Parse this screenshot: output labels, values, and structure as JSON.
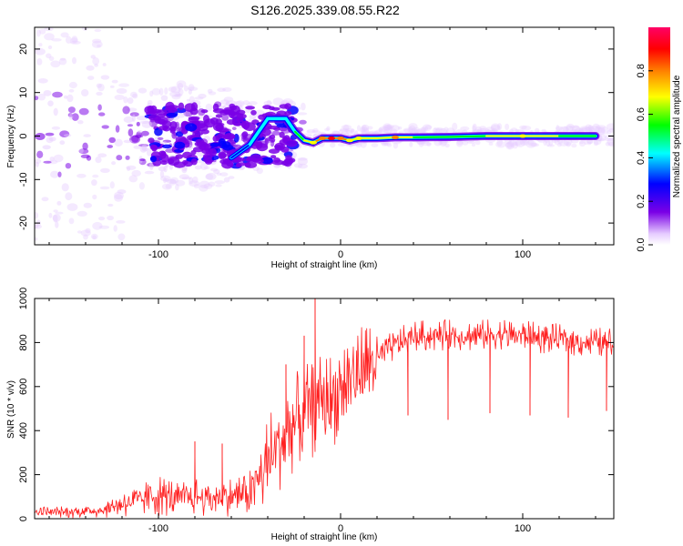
{
  "title": "S126.2025.339.08.55.R22",
  "chart_data": [
    {
      "type": "heatmap",
      "name": "spectrogram",
      "xlabel": "Height of straight line (km)",
      "ylabel": "Frequency (Hz)",
      "xlim": [
        -168,
        150
      ],
      "ylim": [
        -25,
        25
      ],
      "xticks": [
        -100,
        0,
        100
      ],
      "xtick_labels": [
        "-100",
        "0",
        "100"
      ],
      "yticks": [
        -20,
        -10,
        0,
        10,
        20
      ],
      "ytick_labels": [
        "-20",
        "-10",
        "0",
        "10",
        "20"
      ],
      "colorbar": {
        "label": "Normalized spectral amplitude",
        "range": [
          0,
          1
        ],
        "ticks": [
          0.0,
          0.2,
          0.4,
          0.6,
          0.8
        ],
        "tick_labels": [
          "0.0",
          "0.2",
          "0.4",
          "0.6",
          "0.8"
        ],
        "colors": [
          "#ffffff",
          "#e6ccff",
          "#7a00e6",
          "#0000ff",
          "#00ffff",
          "#00ff00",
          "#ffff00",
          "#ff8000",
          "#ff0000",
          "#ff0066"
        ]
      },
      "ridge_points": [
        {
          "x": -60,
          "y": -5,
          "v": 0.35
        },
        {
          "x": -50,
          "y": -2,
          "v": 0.4
        },
        {
          "x": -40,
          "y": 4,
          "v": 0.4
        },
        {
          "x": -30,
          "y": 4,
          "v": 0.4
        },
        {
          "x": -25,
          "y": 1,
          "v": 0.5
        },
        {
          "x": -20,
          "y": -1,
          "v": 0.6
        },
        {
          "x": -15,
          "y": -1.5,
          "v": 0.7
        },
        {
          "x": -10,
          "y": -0.5,
          "v": 0.75
        },
        {
          "x": -5,
          "y": -0.5,
          "v": 0.85
        },
        {
          "x": 0,
          "y": -0.5,
          "v": 0.8
        },
        {
          "x": 5,
          "y": -1,
          "v": 0.7
        },
        {
          "x": 10,
          "y": -0.5,
          "v": 0.7
        },
        {
          "x": 20,
          "y": -0.5,
          "v": 0.6
        },
        {
          "x": 30,
          "y": -0.3,
          "v": 0.75
        },
        {
          "x": 40,
          "y": -0.3,
          "v": 0.55
        },
        {
          "x": 60,
          "y": -0.2,
          "v": 0.5
        },
        {
          "x": 80,
          "y": 0,
          "v": 0.55
        },
        {
          "x": 100,
          "y": 0,
          "v": 0.7
        },
        {
          "x": 120,
          "y": 0,
          "v": 0.55
        },
        {
          "x": 140,
          "y": 0,
          "v": 0.5
        }
      ]
    },
    {
      "type": "line",
      "name": "snr",
      "xlabel": "Height of straight line (km)",
      "ylabel": "SNR (10 * v/v)",
      "xlim": [
        -168,
        150
      ],
      "ylim": [
        0,
        1000
      ],
      "xticks": [
        -100,
        0,
        100
      ],
      "xtick_labels": [
        "-100",
        "0",
        "100"
      ],
      "yticks": [
        0,
        200,
        400,
        600,
        800,
        1000
      ],
      "ytick_labels": [
        "0",
        "200",
        "400",
        "600",
        "800",
        "1000"
      ],
      "color": "#ff2020",
      "series": [
        {
          "name": "SNR",
          "x": [
            -168,
            -150,
            -140,
            -130,
            -120,
            -110,
            -100,
            -90,
            -80,
            -70,
            -60,
            -50,
            -45,
            -40,
            -35,
            -30,
            -25,
            -20,
            -15,
            -10,
            -5,
            0,
            5,
            10,
            15,
            20,
            25,
            30,
            35,
            40,
            50,
            60,
            70,
            80,
            90,
            100,
            110,
            120,
            130,
            140,
            150
          ],
          "values": [
            30,
            30,
            35,
            40,
            70,
            80,
            110,
            90,
            100,
            95,
            100,
            120,
            180,
            250,
            330,
            380,
            440,
            480,
            490,
            550,
            530,
            600,
            640,
            660,
            700,
            720,
            760,
            790,
            810,
            830,
            830,
            835,
            830,
            835,
            840,
            830,
            820,
            815,
            805,
            800,
            800
          ]
        }
      ],
      "dips": [
        {
          "x": 37,
          "y": 470
        },
        {
          "x": 59,
          "y": 450
        },
        {
          "x": 82,
          "y": 480
        },
        {
          "x": 104,
          "y": 470
        },
        {
          "x": 125,
          "y": 460
        },
        {
          "x": 146,
          "y": 490
        }
      ],
      "spikes": [
        {
          "x": -80,
          "y": 350
        },
        {
          "x": -65,
          "y": 340
        },
        {
          "x": -30,
          "y": 700
        },
        {
          "x": -20,
          "y": 830
        },
        {
          "x": -14,
          "y": 1000
        },
        {
          "x": 90,
          "y": 900
        }
      ]
    }
  ]
}
